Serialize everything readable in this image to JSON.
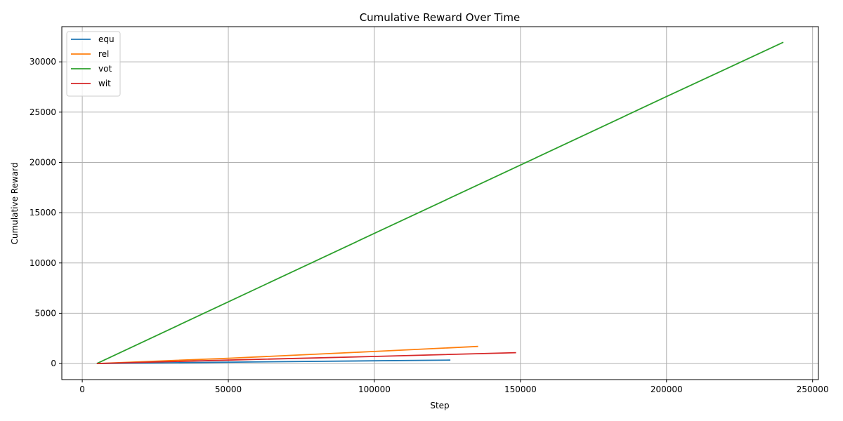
{
  "chart_data": {
    "type": "line",
    "title": "Cumulative Reward Over Time",
    "xlabel": "Step",
    "ylabel": "Cumulative Reward",
    "xlim": [
      -7000,
      252000
    ],
    "ylim": [
      -1600,
      33500
    ],
    "xticks": [
      0,
      50000,
      100000,
      150000,
      200000,
      250000
    ],
    "yticks": [
      0,
      5000,
      10000,
      15000,
      20000,
      25000,
      30000
    ],
    "grid": true,
    "legend_position": "upper-left",
    "series": [
      {
        "name": "equ",
        "color": "#1f77b4",
        "x": [
          5000,
          50000,
          100000,
          126000
        ],
        "y": [
          0,
          130,
          270,
          340
        ]
      },
      {
        "name": "rel",
        "color": "#ff7f0e",
        "x": [
          5000,
          50000,
          100000,
          135500
        ],
        "y": [
          0,
          520,
          1200,
          1700
        ]
      },
      {
        "name": "vot",
        "color": "#2ca02c",
        "x": [
          5000,
          50000,
          100000,
          150000,
          200000,
          240000
        ],
        "y": [
          0,
          6130,
          12940,
          19740,
          26550,
          31950
        ]
      },
      {
        "name": "wit",
        "color": "#d62728",
        "x": [
          5000,
          50000,
          100000,
          148500
        ],
        "y": [
          0,
          340,
          700,
          1080
        ]
      }
    ]
  }
}
